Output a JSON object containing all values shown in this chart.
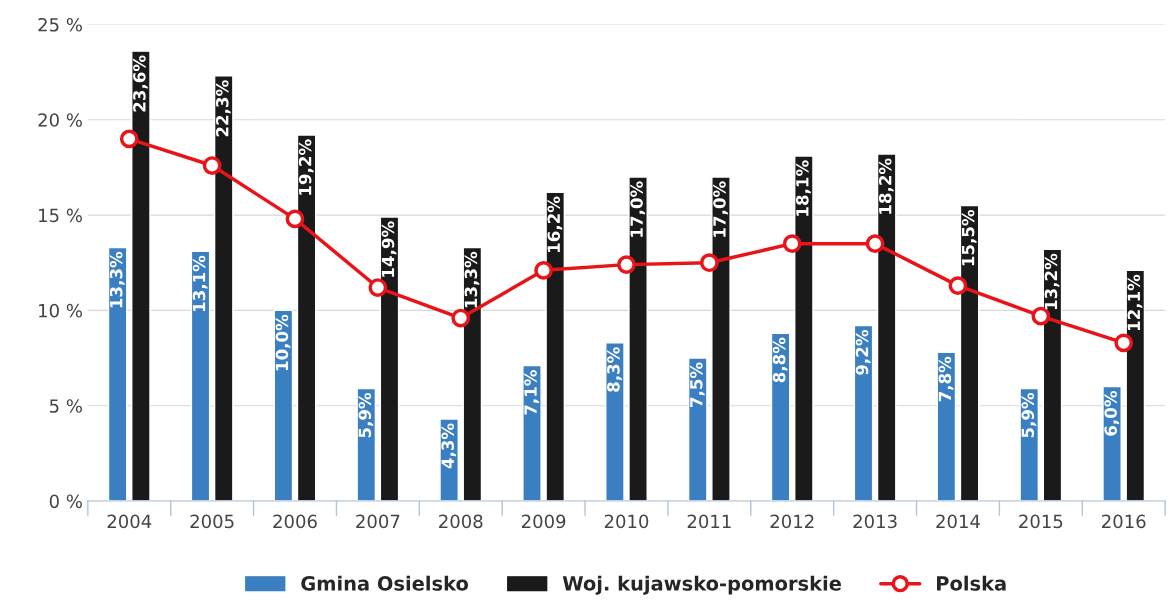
{
  "chart_data": {
    "type": "bar",
    "categories": [
      "2004",
      "2005",
      "2006",
      "2007",
      "2008",
      "2009",
      "2010",
      "2011",
      "2012",
      "2013",
      "2014",
      "2015",
      "2016"
    ],
    "series": [
      {
        "name": "Gmina Osielsko",
        "color": "#3a7fc1",
        "values": [
          13.3,
          13.1,
          10.0,
          5.9,
          4.3,
          7.1,
          8.3,
          7.5,
          8.8,
          9.2,
          7.8,
          5.9,
          6.0
        ],
        "value_labels": [
          "13,3%",
          "13,1%",
          "10,0%",
          "5,9%",
          "4,3%",
          "7,1%",
          "8,3%",
          "7,5%",
          "8,8%",
          "9,2%",
          "7,8%",
          "5,9%",
          "6,0%"
        ]
      },
      {
        "name": "Woj. kujawsko-pomorskie",
        "color": "#1a1a1a",
        "values": [
          23.6,
          22.3,
          19.2,
          14.9,
          13.3,
          16.2,
          17.0,
          17.0,
          18.1,
          18.2,
          15.5,
          13.2,
          12.1
        ],
        "value_labels": [
          "23,6%",
          "22,3%",
          "19,2%",
          "14,9%",
          "13,3%",
          "16,2%",
          "17,0%",
          "17,0%",
          "18,1%",
          "18,2%",
          "15,5%",
          "13,2%",
          "12,1%"
        ]
      },
      {
        "name": "Polska",
        "type": "line",
        "color": "#e8141a",
        "marker": "circle",
        "values": [
          19.0,
          17.6,
          14.8,
          11.2,
          9.6,
          12.1,
          12.4,
          12.5,
          13.5,
          13.5,
          11.3,
          9.7,
          8.3
        ]
      }
    ],
    "ylim": [
      0,
      25
    ],
    "yticks": [
      {
        "value": 0,
        "label": "0 %"
      },
      {
        "value": 5,
        "label": "5 %"
      },
      {
        "value": 10,
        "label": "10 %"
      },
      {
        "value": 15,
        "label": "15 %"
      },
      {
        "value": 20,
        "label": "20 %"
      },
      {
        "value": 25,
        "label": "25 %"
      }
    ],
    "grid": "y",
    "legend": "bottom"
  }
}
